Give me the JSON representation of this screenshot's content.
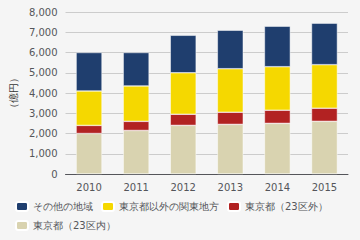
{
  "chart_data": {
    "type": "bar",
    "stacked": true,
    "categories": [
      "2010",
      "2011",
      "2012",
      "2013",
      "2014",
      "2015"
    ],
    "series": [
      {
        "name": "東京都（23区内）",
        "color": "#d9d3b0",
        "values": [
          2000,
          2150,
          2400,
          2450,
          2500,
          2600
        ]
      },
      {
        "name": "東京都（23区外）",
        "color": "#b22222",
        "values": [
          400,
          450,
          550,
          600,
          650,
          650
        ]
      },
      {
        "name": "東京都以外の関東地方",
        "color": "#f5d800",
        "values": [
          1700,
          1750,
          2050,
          2150,
          2150,
          2150
        ]
      },
      {
        "name": "その他の地域",
        "color": "#1f3e6e",
        "values": [
          1900,
          1650,
          1850,
          1900,
          2000,
          2050
        ]
      }
    ],
    "ylabel": "（億円）",
    "ylim": [
      0,
      8000
    ],
    "yticks": [
      0,
      {
        "value": 1000,
        "label": "1,000"
      },
      {
        "value": 2000,
        "label": "2,000"
      },
      {
        "value": 3000,
        "label": "3,000"
      },
      {
        "value": 4000,
        "label": "4,000"
      },
      {
        "value": 5000,
        "label": "5,000"
      },
      {
        "value": 6000,
        "label": "6,000"
      },
      {
        "value": 7000,
        "label": "7,000"
      },
      {
        "value": 8000,
        "label": "8,000"
      }
    ],
    "grid": true,
    "legend": "lower left"
  }
}
